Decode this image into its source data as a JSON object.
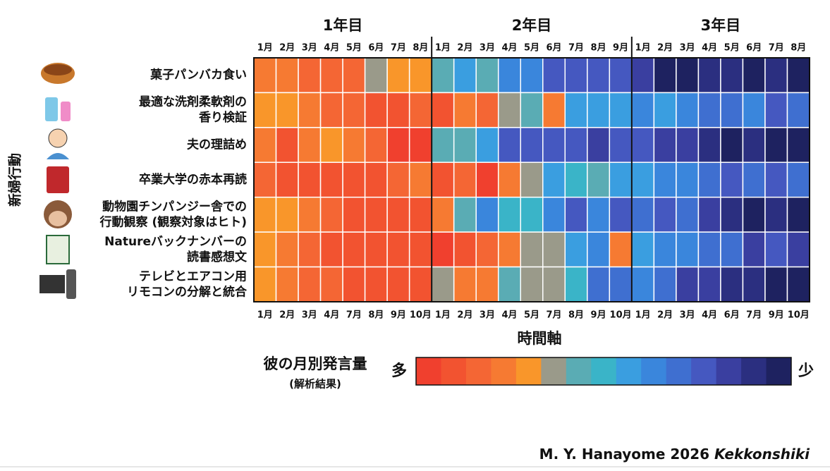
{
  "chart_data": {
    "type": "heatmap",
    "x_label": "時間軸",
    "y_label": "新婦行動",
    "groups": [
      {
        "name": "1年目",
        "top_labels": [
          "1月",
          "2月",
          "3月",
          "4月",
          "5月",
          "6月",
          "7月",
          "8月"
        ],
        "bottom_labels": [
          "1月",
          "2月",
          "3月",
          "4月",
          "7月",
          "8月",
          "9月",
          "10月"
        ]
      },
      {
        "name": "2年目",
        "top_labels": [
          "1月",
          "2月",
          "3月",
          "4月",
          "5月",
          "6月",
          "7月",
          "8月",
          "9月"
        ],
        "bottom_labels": [
          "1月",
          "2月",
          "3月",
          "4月",
          "5月",
          "7月",
          "8月",
          "9月",
          "10月"
        ]
      },
      {
        "name": "3年目",
        "top_labels": [
          "1月",
          "2月",
          "3月",
          "4月",
          "5月",
          "6月",
          "7月",
          "8月"
        ],
        "bottom_labels": [
          "1月",
          "2月",
          "3月",
          "4月",
          "6月",
          "7月",
          "9月",
          "10月"
        ]
      }
    ],
    "rows": [
      {
        "label": [
          "菓子パンバカ食い"
        ],
        "values": [
          3,
          3,
          2,
          2,
          2,
          5,
          4,
          4,
          6,
          8,
          6,
          9,
          9,
          11,
          11,
          11,
          11,
          12,
          14,
          14,
          13,
          13,
          14,
          13,
          14
        ]
      },
      {
        "label": [
          "最適な洗剤柔軟剤の",
          "香り検証"
        ],
        "values": [
          4,
          4,
          3,
          2,
          2,
          1,
          1,
          2,
          1,
          3,
          2,
          5,
          6,
          3,
          8,
          8,
          8,
          9,
          8,
          9,
          10,
          10,
          9,
          11,
          10
        ]
      },
      {
        "label": [
          "夫の理詰め"
        ],
        "values": [
          3,
          1,
          3,
          4,
          3,
          2,
          0,
          0,
          6,
          6,
          8,
          11,
          11,
          11,
          11,
          12,
          11,
          11,
          12,
          12,
          13,
          14,
          13,
          14,
          14
        ]
      },
      {
        "label": [
          "卒業大学の赤本再読"
        ],
        "values": [
          2,
          1,
          1,
          1,
          1,
          1,
          2,
          3,
          1,
          2,
          0,
          3,
          5,
          8,
          7,
          6,
          8,
          8,
          9,
          9,
          10,
          11,
          10,
          11,
          10
        ]
      },
      {
        "label": [
          "動物園チンパンジー舎での",
          "行動観察 (観察対象はヒト)"
        ],
        "values": [
          4,
          4,
          3,
          2,
          1,
          1,
          1,
          1,
          3,
          6,
          9,
          7,
          7,
          9,
          11,
          9,
          11,
          10,
          11,
          10,
          12,
          13,
          14,
          13,
          14
        ]
      },
      {
        "label": [
          "Natureバックナンバーの",
          "読書感想文"
        ],
        "values": [
          4,
          3,
          2,
          1,
          1,
          1,
          1,
          1,
          0,
          1,
          2,
          3,
          5,
          5,
          8,
          9,
          3,
          8,
          9,
          9,
          10,
          10,
          12,
          11,
          12
        ]
      },
      {
        "label": [
          "テレビとエアコン用",
          "リモコンの分解と統合"
        ],
        "values": [
          4,
          3,
          2,
          2,
          1,
          1,
          1,
          1,
          5,
          3,
          3,
          6,
          5,
          5,
          7,
          10,
          10,
          9,
          10,
          12,
          12,
          13,
          13,
          14,
          14
        ]
      }
    ],
    "colorbar": {
      "title": "彼の月別発言量",
      "subtitle": "(解析結果)",
      "high": "多",
      "low": "少",
      "colors": [
        "#f0402e",
        "#f25330",
        "#f46634",
        "#f67a32",
        "#f9962a",
        "#9a9a8a",
        "#5aacb4",
        "#3ab4c8",
        "#3a9ee0",
        "#3a86dc",
        "#3f6fd0",
        "#4558c0",
        "#3a3fa0",
        "#2b2f80",
        "#1e2260"
      ]
    },
    "credit": {
      "text": "M. Y. Hanayome 2026",
      "italic": "Kekkonshiki"
    }
  }
}
